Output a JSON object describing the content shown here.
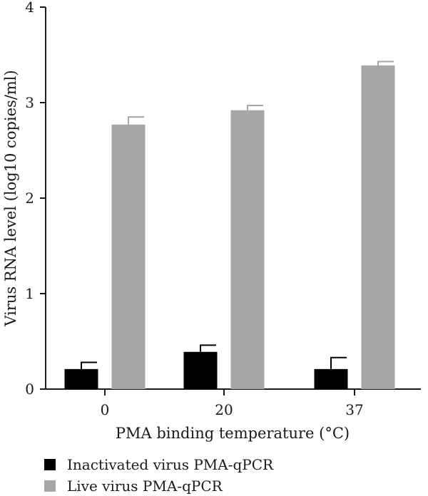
{
  "chart_data": {
    "type": "bar",
    "xlabel": "PMA binding temperature (°C)",
    "ylabel": "Virus RNA level (log10 copies/ml)",
    "ylim": [
      0,
      4
    ],
    "yticks": [
      0,
      1,
      2,
      3,
      4
    ],
    "categories": [
      "0",
      "20",
      "37"
    ],
    "series": [
      {
        "name": "Inactivated virus PMA-qPCR",
        "color": "#000000",
        "values": [
          0.21,
          0.39,
          0.21
        ],
        "errors": [
          0.07,
          0.07,
          0.12
        ]
      },
      {
        "name": "Live virus PMA-qPCR",
        "color": "#a6a6a6",
        "values": [
          2.77,
          2.92,
          3.39
        ],
        "errors": [
          0.08,
          0.05,
          0.04
        ]
      }
    ],
    "grid": false,
    "legend_position": "bottom-left"
  }
}
